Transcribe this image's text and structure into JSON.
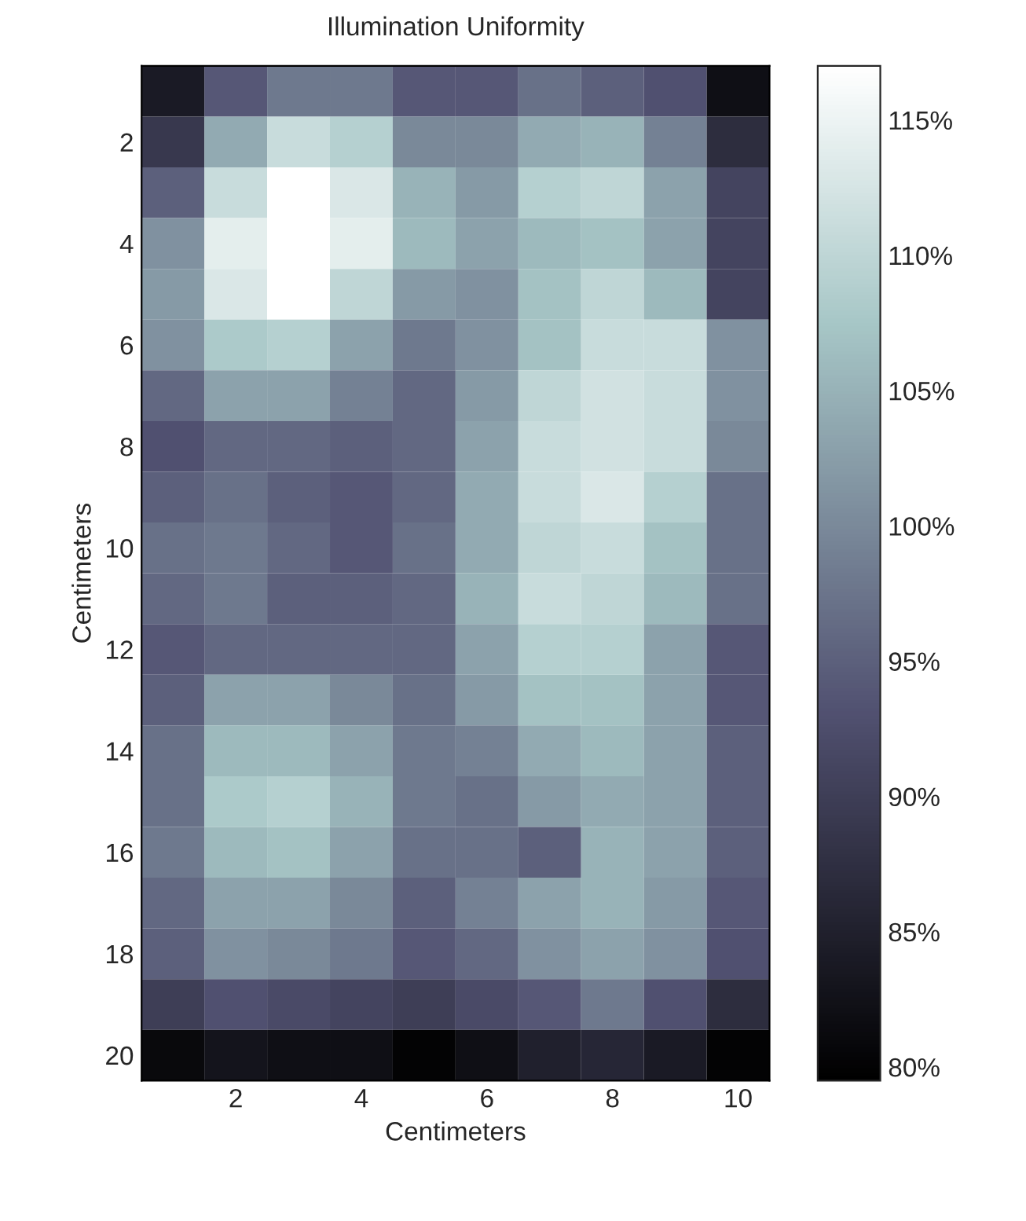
{
  "chart_data": {
    "type": "heatmap",
    "title": "Illumination Uniformity",
    "xlabel": "Centimeters",
    "ylabel": "Centimeters",
    "categories": [
      null,
      "2",
      null,
      "4",
      null,
      "6",
      null,
      "8",
      null,
      "10"
    ],
    "y_categories": [
      null,
      "2",
      null,
      "4",
      null,
      "6",
      null,
      "8",
      null,
      "10",
      null,
      "12",
      null,
      "14",
      null,
      "16",
      null,
      "18",
      null,
      "20"
    ],
    "cells": [
      [
        84,
        94,
        98,
        98,
        94,
        94,
        97,
        95,
        93,
        82
      ],
      [
        89,
        104,
        111,
        109,
        100,
        100,
        104,
        105,
        99,
        87
      ],
      [
        95,
        111,
        117,
        113,
        105,
        102,
        109,
        110,
        103,
        91
      ],
      [
        101,
        114,
        117,
        114,
        106,
        103,
        106,
        107,
        103,
        91
      ],
      [
        102,
        113,
        117,
        110,
        102,
        101,
        107,
        110,
        106,
        91
      ],
      [
        101,
        108,
        109,
        103,
        98,
        101,
        107,
        111,
        111,
        101
      ],
      [
        96,
        103,
        103,
        99,
        96,
        102,
        110,
        112,
        111,
        101
      ],
      [
        93,
        96,
        96,
        95,
        96,
        103,
        111,
        112,
        111,
        100
      ],
      [
        95,
        97,
        95,
        94,
        96,
        104,
        111,
        113,
        109,
        97
      ],
      [
        97,
        98,
        96,
        94,
        97,
        104,
        110,
        111,
        107,
        97
      ],
      [
        96,
        98,
        95,
        95,
        96,
        105,
        111,
        110,
        106,
        97
      ],
      [
        94,
        96,
        96,
        96,
        96,
        103,
        109,
        109,
        103,
        94
      ],
      [
        95,
        103,
        103,
        100,
        97,
        102,
        107,
        107,
        103,
        94
      ],
      [
        97,
        106,
        106,
        103,
        98,
        99,
        104,
        106,
        103,
        95
      ],
      [
        97,
        108,
        109,
        105,
        98,
        97,
        102,
        104,
        103,
        95
      ],
      [
        98,
        106,
        107,
        103,
        97,
        97,
        95,
        105,
        103,
        95
      ],
      [
        96,
        103,
        103,
        100,
        95,
        99,
        103,
        105,
        102,
        94
      ],
      [
        95,
        101,
        100,
        98,
        94,
        96,
        101,
        103,
        101,
        93
      ],
      [
        90,
        93,
        92,
        91,
        90,
        92,
        94,
        98,
        93,
        87
      ],
      [
        81,
        83,
        82,
        82,
        80,
        82,
        85,
        86,
        84,
        80
      ]
    ],
    "clim": [
      79.5,
      117
    ],
    "cticks": [
      {
        "value": 80,
        "label": "80%"
      },
      {
        "value": 85,
        "label": "85%"
      },
      {
        "value": 90,
        "label": "90%"
      },
      {
        "value": 95,
        "label": "95%"
      },
      {
        "value": 100,
        "label": "100%"
      },
      {
        "value": 105,
        "label": "105%"
      },
      {
        "value": 110,
        "label": "110%"
      },
      {
        "value": 115,
        "label": "115%"
      }
    ]
  }
}
